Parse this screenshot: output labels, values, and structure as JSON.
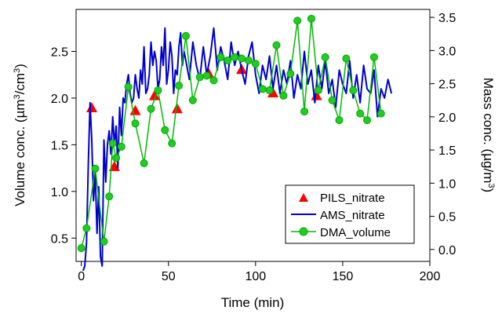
{
  "chart_data": {
    "type": "line",
    "title": "",
    "xlabel": "Time (min)",
    "ylabel_left": {
      "prefix": "Volume conc. (µm",
      "sup1": "3",
      "mid": "/cm",
      "sup2": "3",
      "suffix": ")"
    },
    "ylabel_right": {
      "prefix": "Mass conc. (µg/m",
      "sup": "3",
      "suffix": ")"
    },
    "xlim": [
      -3,
      200
    ],
    "ylim_left": [
      0.25,
      2.95
    ],
    "ylim_right": [
      -0.18,
      3.62
    ],
    "x_ticks": [
      0,
      50,
      100,
      150,
      200
    ],
    "y_left_ticks": [
      0.5,
      1.0,
      1.5,
      2.0,
      2.5
    ],
    "y_right_ticks": [
      0.0,
      0.5,
      1.0,
      1.5,
      2.0,
      2.5,
      3.0,
      3.5
    ],
    "legend_position": "bottom-right",
    "colors": {
      "pils": "#ff0000",
      "ams": "#0000cc",
      "dma": "#00bb00"
    },
    "series": [
      {
        "name": "PILS_nitrate",
        "axis": "left",
        "marker": "triangle",
        "x": [
          6,
          19,
          31,
          42,
          55,
          73,
          92,
          110,
          135
        ],
        "y": [
          1.89,
          1.26,
          1.86,
          2.02,
          1.88,
          2.26,
          2.3,
          2.05,
          2.02
        ]
      },
      {
        "name": "AMS_nitrate",
        "axis": "left",
        "marker": "line",
        "x": [
          1,
          2,
          3,
          4,
          5,
          6,
          7,
          8,
          9,
          10,
          11,
          12,
          13,
          14,
          15,
          16,
          17,
          18,
          19,
          20,
          21,
          22,
          23,
          24,
          25,
          26,
          27,
          28,
          29,
          30,
          31,
          32,
          33,
          34,
          35,
          36,
          37,
          38,
          39,
          40,
          41,
          42,
          43,
          44,
          45,
          46,
          47,
          48,
          49,
          50,
          51,
          52,
          53,
          54,
          55,
          56,
          57,
          58,
          59,
          60,
          62,
          64,
          66,
          68,
          70,
          72,
          74,
          76,
          78,
          80,
          82,
          84,
          86,
          88,
          90,
          92,
          94,
          96,
          98,
          100,
          102,
          104,
          106,
          108,
          110,
          112,
          114,
          116,
          118,
          120,
          122,
          124,
          126,
          128,
          130,
          132,
          134,
          136,
          138,
          140,
          142,
          144,
          146,
          148,
          150,
          152,
          154,
          156,
          158,
          160,
          162,
          164,
          166,
          168,
          170,
          172,
          174,
          176,
          178
        ],
        "y": [
          0.15,
          0.2,
          0.45,
          1.3,
          1.95,
          1.55,
          0.9,
          1.2,
          0.55,
          1.05,
          0.3,
          0.2,
          1.55,
          1.1,
          1.5,
          1.65,
          1.4,
          1.8,
          1.5,
          1.7,
          1.25,
          1.9,
          1.6,
          2.0,
          1.95,
          2.15,
          2.25,
          2.05,
          1.95,
          2.0,
          2.25,
          2.1,
          2.0,
          2.3,
          2.15,
          2.55,
          2.05,
          2.1,
          2.25,
          2.6,
          2.35,
          2.5,
          2.4,
          2.1,
          2.2,
          2.55,
          2.35,
          2.75,
          2.15,
          2.3,
          2.6,
          2.45,
          2.05,
          2.3,
          2.25,
          2.55,
          2.7,
          2.35,
          2.5,
          2.4,
          2.2,
          2.6,
          2.35,
          2.2,
          2.55,
          2.25,
          2.45,
          2.75,
          2.3,
          2.55,
          2.4,
          2.2,
          2.6,
          2.35,
          2.5,
          2.3,
          2.15,
          2.45,
          2.6,
          2.25,
          2.05,
          2.35,
          2.2,
          2.45,
          2.1,
          2.35,
          2.05,
          2.3,
          2.15,
          2.4,
          2.0,
          2.25,
          2.1,
          2.5,
          2.15,
          2.3,
          1.95,
          2.35,
          2.1,
          2.4,
          2.05,
          2.2,
          1.9,
          2.3,
          2.15,
          2.05,
          2.4,
          2.0,
          2.25,
          1.95,
          2.35,
          2.1,
          2.05,
          2.3,
          1.8,
          2.1,
          2.0,
          2.2,
          2.05
        ]
      },
      {
        "name": "DMA_volume",
        "axis": "right",
        "marker": "circle",
        "x": [
          0,
          3,
          8,
          13,
          16,
          18,
          20,
          23,
          27,
          31,
          36,
          40,
          44,
          48,
          52,
          56,
          60,
          64,
          68,
          72,
          76,
          80,
          84,
          88,
          92,
          96,
          100,
          104,
          108,
          112,
          116,
          120,
          124,
          128,
          132,
          136,
          140,
          144,
          148,
          152,
          156,
          160,
          164,
          168,
          172
        ],
        "y": [
          0.02,
          0.32,
          1.22,
          0.12,
          0.8,
          1.6,
          1.38,
          1.55,
          2.45,
          1.9,
          1.3,
          2.12,
          2.4,
          1.8,
          1.6,
          2.47,
          3.22,
          2.25,
          2.6,
          2.62,
          2.55,
          2.9,
          2.85,
          2.9,
          2.88,
          2.85,
          2.8,
          2.42,
          2.4,
          3.08,
          2.32,
          2.65,
          3.45,
          2.08,
          3.48,
          2.4,
          2.9,
          2.25,
          1.95,
          2.88,
          2.4,
          2.05,
          1.95,
          2.9,
          2.05
        ]
      }
    ]
  }
}
